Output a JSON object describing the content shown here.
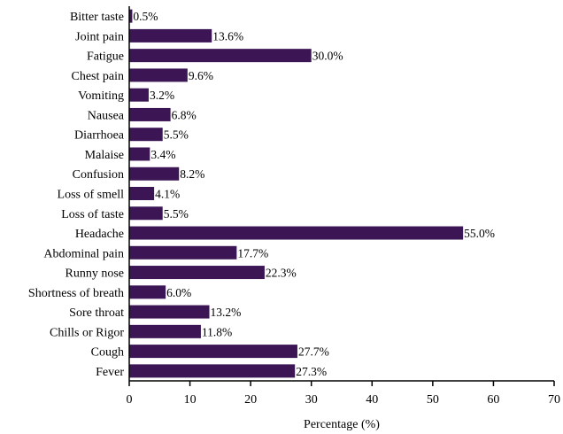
{
  "chart_data": {
    "type": "bar",
    "orientation": "horizontal",
    "categories": [
      "Bitter taste",
      "Joint pain",
      "Fatigue",
      "Chest pain",
      "Vomiting",
      "Nausea",
      "Diarrhoea",
      "Malaise",
      "Confusion",
      "Loss of smell",
      "Loss of taste",
      "Headache",
      "Abdominal pain",
      "Runny nose",
      "Shortness of breath",
      "Sore throat",
      "Chills or Rigor",
      "Cough",
      "Fever"
    ],
    "values": [
      0.5,
      13.6,
      30.0,
      9.6,
      3.2,
      6.8,
      5.5,
      3.4,
      8.2,
      4.1,
      5.5,
      55.0,
      17.7,
      22.3,
      6.0,
      13.2,
      11.8,
      27.7,
      27.3
    ],
    "value_labels": [
      "0.5%",
      "13.6%",
      "30.0%",
      "9.6%",
      "3.2%",
      "6.8%",
      "5.5%",
      "3.4%",
      "8.2%",
      "4.1%",
      "5.5%",
      "55.0%",
      "17.7%",
      "22.3%",
      "6.0%",
      "13.2%",
      "11.8%",
      "27.7%",
      "27.3%"
    ],
    "xlabel": "Percentage (%)",
    "ylabel": "",
    "xlim": [
      0,
      70
    ],
    "xticks": [
      0,
      10,
      20,
      30,
      40,
      50,
      60,
      70
    ],
    "grid": false,
    "legend": "none",
    "bar_color": "#3b1554"
  }
}
